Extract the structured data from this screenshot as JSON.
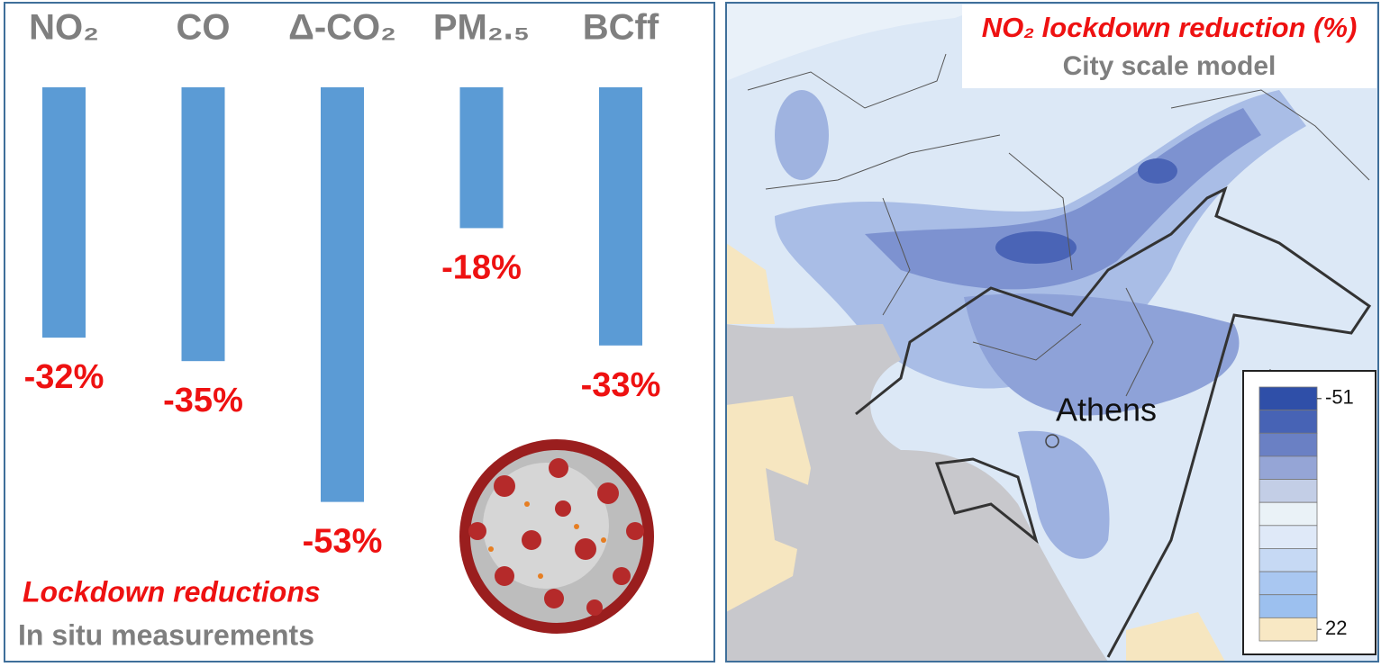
{
  "chart_data": {
    "type": "bar",
    "categories": [
      "NO₂",
      "CO",
      "Δ-CO₂",
      "PM₂.₅",
      "BCff"
    ],
    "values": [
      -32,
      -35,
      -53,
      -18,
      -33
    ],
    "value_labels": [
      "-32%",
      "-35%",
      "-53%",
      "-18%",
      "-33%"
    ],
    "color": "#5b9bd5",
    "ylim": [
      -55,
      0
    ],
    "title": "Lockdown reductions",
    "subtitle": "In situ measurements"
  },
  "map": {
    "title": "NO₂ lockdown reduction (%)",
    "subtitle": "City scale model",
    "place_label": "Athens",
    "colorbar": {
      "lim": [
        -51,
        22
      ],
      "ticks": [
        -51,
        22
      ],
      "colors": [
        "#2f4fa8",
        "#4763b5",
        "#6a80c4",
        "#95a5d6",
        "#c3cee6",
        "#eaf2f7",
        "#dfe9f8",
        "#c6d9f4",
        "#a9c7f1",
        "#9cc0ef",
        "#f8e8c4"
      ]
    }
  }
}
